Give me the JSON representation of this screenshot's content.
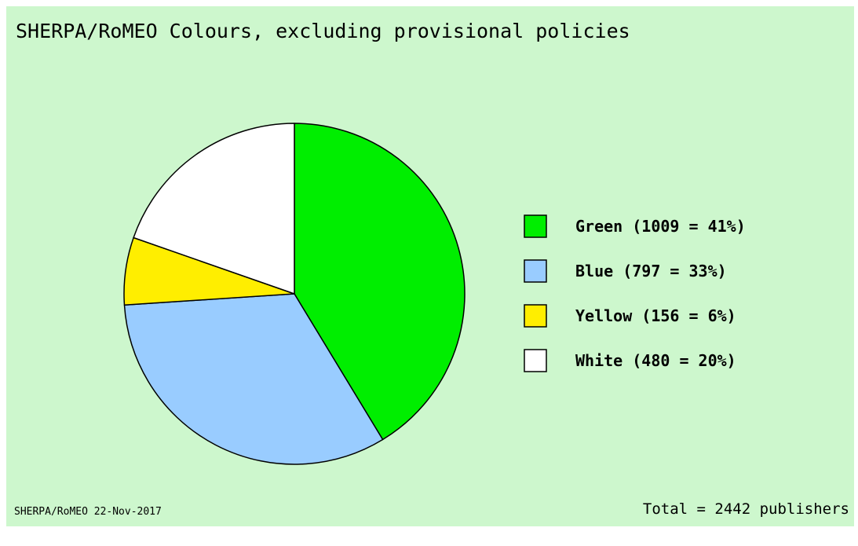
{
  "chart_data": {
    "type": "pie",
    "title": "SHERPA/RoMEO Colours, excluding provisional policies",
    "slices": [
      {
        "label": "Green (1009 = 41%)",
        "value": 1009,
        "percent": 41,
        "color": "#00ee00"
      },
      {
        "label": "Blue (797 = 33%)",
        "value": 797,
        "percent": 33,
        "color": "#99ccff"
      },
      {
        "label": "Yellow (156 = 6%)",
        "value": 156,
        "percent": 6,
        "color": "#ffee00"
      },
      {
        "label": "White (480 = 20%)",
        "value": 480,
        "percent": 20,
        "color": "#ffffff"
      }
    ],
    "legend_placement": "right",
    "footer_left": "SHERPA/RoMEO 22-Nov-2017",
    "footer_right": "Total = 2442 publishers",
    "background_color": "#cdf7cd"
  }
}
